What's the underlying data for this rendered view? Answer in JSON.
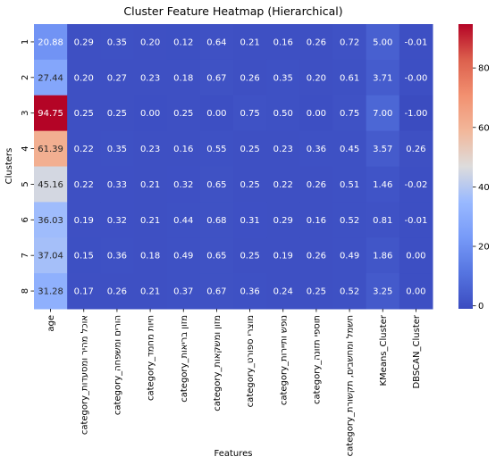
{
  "chart_data": {
    "type": "heatmap",
    "title": "Cluster Feature Heatmap (Hierarchical)",
    "xlabel": "Features",
    "ylabel": "Clusters",
    "columns": [
      "age",
      "category_אוכל מהיר ומסעדות",
      "category_הורים ומשפחה",
      "category_חיות מחמד",
      "category_מזון בריאות",
      "category_מזון ומשקאות",
      "category_מוצרי ספורט",
      "category_נופש ותיירות",
      "category_תוספי תזונה",
      "category_חשמל ומחשבים, תקשורת",
      "KMeans_Cluster",
      "DBSCAN_Cluster"
    ],
    "rows": [
      "1",
      "2",
      "3",
      "4",
      "5",
      "6",
      "7",
      "8"
    ],
    "values": [
      [
        20.88,
        0.29,
        0.35,
        0.2,
        0.12,
        0.64,
        0.21,
        0.16,
        0.26,
        0.72,
        5.0,
        -0.01
      ],
      [
        27.44,
        0.2,
        0.27,
        0.23,
        0.18,
        0.67,
        0.26,
        0.35,
        0.2,
        0.61,
        3.71,
        -0.0
      ],
      [
        94.75,
        0.25,
        0.25,
        0.0,
        0.25,
        0.0,
        0.75,
        0.5,
        0.0,
        0.75,
        7.0,
        -1.0
      ],
      [
        61.39,
        0.22,
        0.35,
        0.23,
        0.16,
        0.55,
        0.25,
        0.23,
        0.36,
        0.45,
        3.57,
        0.26
      ],
      [
        45.16,
        0.22,
        0.33,
        0.21,
        0.32,
        0.65,
        0.25,
        0.22,
        0.26,
        0.51,
        1.46,
        -0.02
      ],
      [
        36.03,
        0.19,
        0.32,
        0.21,
        0.44,
        0.68,
        0.31,
        0.29,
        0.16,
        0.52,
        0.81,
        -0.01
      ],
      [
        37.04,
        0.15,
        0.36,
        0.18,
        0.49,
        0.65,
        0.25,
        0.19,
        0.26,
        0.49,
        1.86,
        0.0
      ],
      [
        31.28,
        0.17,
        0.26,
        0.21,
        0.37,
        0.67,
        0.36,
        0.24,
        0.25,
        0.52,
        3.25,
        0.0
      ]
    ],
    "labels": [
      [
        "20.88",
        "0.29",
        "0.35",
        "0.20",
        "0.12",
        "0.64",
        "0.21",
        "0.16",
        "0.26",
        "0.72",
        "5.00",
        "-0.01"
      ],
      [
        "27.44",
        "0.20",
        "0.27",
        "0.23",
        "0.18",
        "0.67",
        "0.26",
        "0.35",
        "0.20",
        "0.61",
        "3.71",
        "-0.00"
      ],
      [
        "94.75",
        "0.25",
        "0.25",
        "0.00",
        "0.25",
        "0.00",
        "0.75",
        "0.50",
        "0.00",
        "0.75",
        "7.00",
        "-1.00"
      ],
      [
        "61.39",
        "0.22",
        "0.35",
        "0.23",
        "0.16",
        "0.55",
        "0.25",
        "0.23",
        "0.36",
        "0.45",
        "3.57",
        "0.26"
      ],
      [
        "45.16",
        "0.22",
        "0.33",
        "0.21",
        "0.32",
        "0.65",
        "0.25",
        "0.22",
        "0.26",
        "0.51",
        "1.46",
        "-0.02"
      ],
      [
        "36.03",
        "0.19",
        "0.32",
        "0.21",
        "0.44",
        "0.68",
        "0.31",
        "0.29",
        "0.16",
        "0.52",
        "0.81",
        "-0.01"
      ],
      [
        "37.04",
        "0.15",
        "0.36",
        "0.18",
        "0.49",
        "0.65",
        "0.25",
        "0.19",
        "0.26",
        "0.49",
        "1.86",
        "0.00"
      ],
      [
        "31.28",
        "0.17",
        "0.26",
        "0.21",
        "0.37",
        "0.67",
        "0.36",
        "0.24",
        "0.25",
        "0.52",
        "3.25",
        "0.00"
      ]
    ],
    "colormap": "coolwarm",
    "colorbar": {
      "vmin": -1.0,
      "vmax": 94.75,
      "ticks": [
        0,
        20,
        40,
        60,
        80
      ]
    }
  }
}
